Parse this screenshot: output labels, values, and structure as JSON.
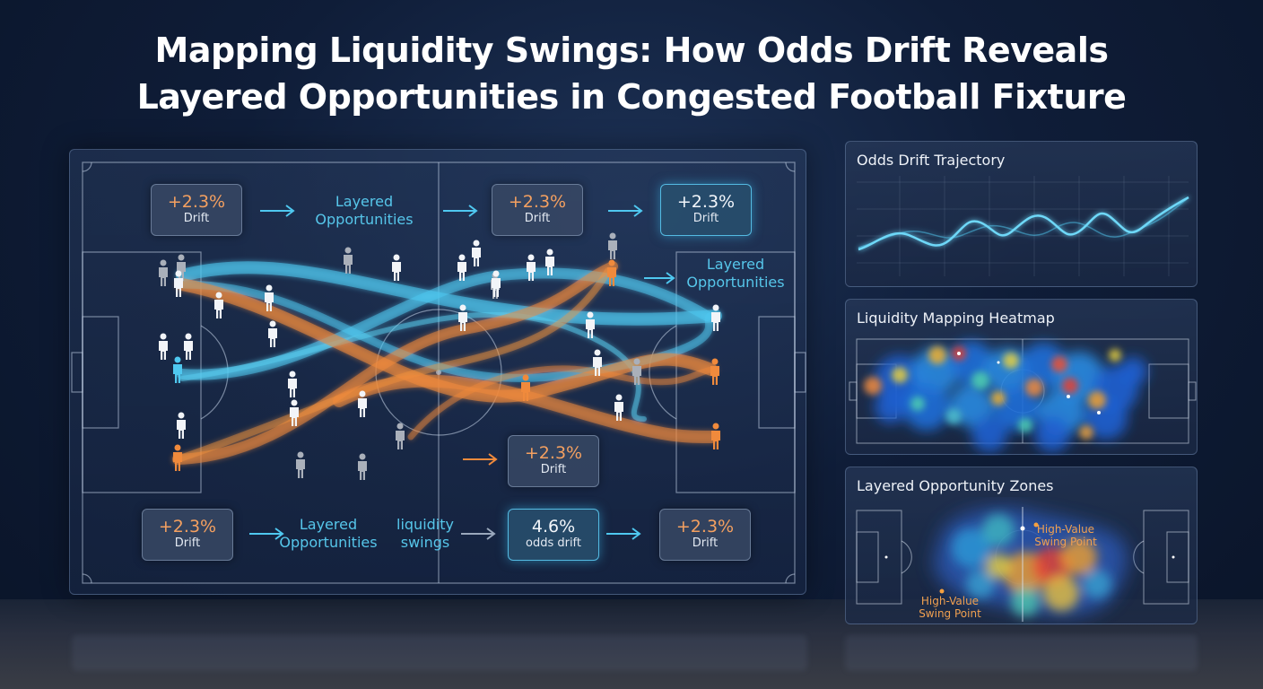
{
  "title": {
    "line1": "Mapping Liquidity Swings: How Odds Drift Reveals",
    "line2": "Layered Opportunities in Congested Football Fixture"
  },
  "pitch": {
    "chips": [
      {
        "value": "+2.3%",
        "label": "Drift"
      },
      {
        "value": "+2.3%",
        "label": "Drift"
      },
      {
        "value": "+2.3%",
        "label": "Drift"
      },
      {
        "value": "+2.3%",
        "label": "Drift"
      },
      {
        "value": "+2.3%",
        "label": "Drift"
      },
      {
        "value": "4.6%",
        "label": "odds drift"
      },
      {
        "value": "+2.3%",
        "label": "Drift"
      }
    ],
    "texts": {
      "layered_top_line1": "Layered",
      "layered_top_line2": "Opportunities",
      "layered_right_line1": "Layered",
      "layered_right_line2": "Opportunities",
      "layered_bottom_line1": "Layered",
      "layered_bottom_line2": "Opportunities",
      "liquidity_line1": "liquidity",
      "liquidity_line2": "swings"
    },
    "colors": {
      "cyan": "#4fc8f0",
      "orange": "#f08a3c",
      "player": "#f2f4f8"
    }
  },
  "panels": {
    "drift": {
      "title": "Odds Drift Trajectory"
    },
    "heatmap": {
      "title": "Liquidity Mapping Heatmap"
    },
    "zones": {
      "title": "Layered Opportunity Zones",
      "label_a_line1": "High-Value",
      "label_a_line2": "Swing Point",
      "label_b_line1": "High-Value",
      "label_b_line2": "Swing Point"
    }
  }
}
